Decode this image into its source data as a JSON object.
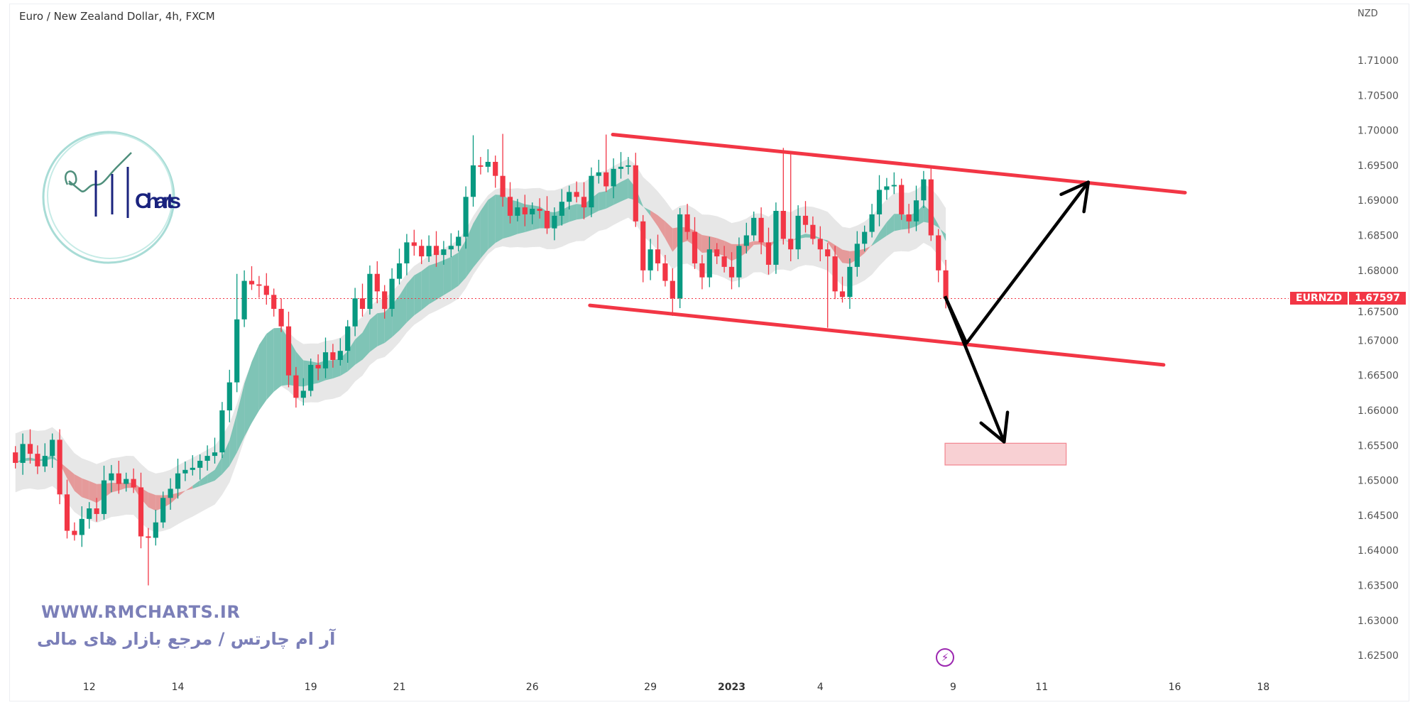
{
  "header": {
    "title": "Euro / New Zealand Dollar, 4h, FXCM"
  },
  "price_axis": {
    "unit": "NZD",
    "ticks": [
      "1.71000",
      "1.70500",
      "1.70000",
      "1.69500",
      "1.69000",
      "1.68500",
      "1.68000",
      "1.67500",
      "1.67000",
      "1.66500",
      "1.66000",
      "1.65500",
      "1.65000",
      "1.64500",
      "1.64000",
      "1.63500",
      "1.63000",
      "1.62500"
    ],
    "range": [
      1.6225,
      1.7135
    ]
  },
  "time_axis": {
    "ticks": [
      {
        "label": "12",
        "bar": 10
      },
      {
        "label": "14",
        "bar": 22
      },
      {
        "label": "19",
        "bar": 40
      },
      {
        "label": "21",
        "bar": 52
      },
      {
        "label": "26",
        "bar": 70
      },
      {
        "label": "29",
        "bar": 86
      },
      {
        "label": "2023",
        "bar": 97,
        "bold": true
      },
      {
        "label": "4",
        "bar": 109
      },
      {
        "label": "9",
        "bar": 127
      },
      {
        "label": "11",
        "bar": 139
      },
      {
        "label": "16",
        "bar": 157
      },
      {
        "label": "18",
        "bar": 169
      }
    ]
  },
  "last_price": {
    "symbol": "EURNZD",
    "value": "1.67597",
    "price": 1.67597
  },
  "colors": {
    "up": "#089981",
    "down": "#f23645",
    "ribbon_up": "#7fc4b6",
    "ribbon_down": "#e59a9a",
    "cloud": "#e3e3e3",
    "drawing": "#f23645",
    "arrow": "#000000",
    "brand": "#7b7fb8",
    "logo_navy": "#1a237e",
    "logo_teal": "#a8dcd6"
  },
  "chart_data": {
    "type": "candlestick",
    "title": "Euro / New Zealand Dollar, 4h, FXCM",
    "first_open": 1.654,
    "closes": [
      1.6525,
      1.6552,
      1.6538,
      1.652,
      1.6535,
      1.6558,
      1.648,
      1.6428,
      1.6422,
      1.6445,
      1.646,
      1.6452,
      1.65,
      1.651,
      1.6495,
      1.6502,
      1.649,
      1.642,
      1.6418,
      1.644,
      1.6475,
      1.6488,
      1.651,
      1.6515,
      1.6518,
      1.6528,
      1.6535,
      1.654,
      1.66,
      1.664,
      1.673,
      1.6785,
      1.678,
      1.6778,
      1.6765,
      1.6745,
      1.672,
      1.665,
      1.6618,
      1.6628,
      1.6665,
      1.666,
      1.6683,
      1.6672,
      1.6685,
      1.672,
      1.676,
      1.6745,
      1.6795,
      1.677,
      1.6745,
      1.6788,
      1.681,
      1.684,
      1.6835,
      1.682,
      1.6835,
      1.6822,
      1.683,
      1.6835,
      1.6848,
      1.6905,
      1.695,
      1.6948,
      1.6955,
      1.6935,
      1.6905,
      1.6878,
      1.689,
      1.688,
      1.6888,
      1.6885,
      1.686,
      1.6878,
      1.6898,
      1.6912,
      1.6905,
      1.689,
      1.6935,
      1.694,
      1.692,
      1.6945,
      1.6948,
      1.695,
      1.687,
      1.68,
      1.683,
      1.681,
      1.6785,
      1.676,
      1.688,
      1.6855,
      1.681,
      1.679,
      1.683,
      1.682,
      1.6805,
      1.679,
      1.6835,
      1.685,
      1.6875,
      1.684,
      1.6808,
      1.6885,
      1.6845,
      1.683,
      1.6878,
      1.6865,
      1.6845,
      1.683,
      1.682,
      1.677,
      1.6762,
      1.6805,
      1.6838,
      1.6855,
      1.688,
      1.6915,
      1.692,
      1.6922,
      1.688,
      1.687,
      1.69,
      1.693,
      1.685,
      1.68,
      1.67597
    ],
    "notable_wicks": [
      {
        "bar": 18,
        "low": 1.635
      },
      {
        "bar": 30,
        "high": 1.6795
      },
      {
        "bar": 62,
        "high": 1.6993
      },
      {
        "bar": 66,
        "high": 1.6995
      },
      {
        "bar": 80,
        "high": 1.6994
      },
      {
        "bar": 89,
        "low": 1.6735
      },
      {
        "bar": 104,
        "high": 1.6975
      },
      {
        "bar": 105,
        "high": 1.697
      },
      {
        "bar": 103,
        "low": 1.6795
      },
      {
        "bar": 110,
        "low": 1.6718
      },
      {
        "bar": 124,
        "high": 1.6948
      }
    ]
  },
  "drawings": {
    "channel_upper": {
      "from": {
        "bar": 80.9,
        "price": 1.6994
      },
      "to": {
        "bar": 158.4,
        "price": 1.6911
      }
    },
    "channel_lower": {
      "from": {
        "bar": 77.8,
        "price": 1.675
      },
      "to": {
        "bar": 155.5,
        "price": 1.6665
      }
    },
    "arrow_path": [
      {
        "bar": 125.9,
        "price": 1.6763
      },
      {
        "bar": 128.8,
        "price": 1.6696
      },
      {
        "bar": 145.3,
        "price": 1.6926
      }
    ],
    "arrow_down": [
      {
        "bar": 125.9,
        "price": 1.6763
      },
      {
        "bar": 133.9,
        "price": 1.6555
      }
    ],
    "target_zone": {
      "bar_from": 125.9,
      "bar_to": 142.3,
      "price_top": 1.6553,
      "price_bottom": 1.6522
    }
  },
  "watermark": {
    "logo_text": "RM Charts",
    "website": "WWW.RMCHARTS.IR",
    "slogan": "آر ام چارتس / مرجع بازار های مالی"
  },
  "icons": {
    "events": "lightning-icon"
  }
}
